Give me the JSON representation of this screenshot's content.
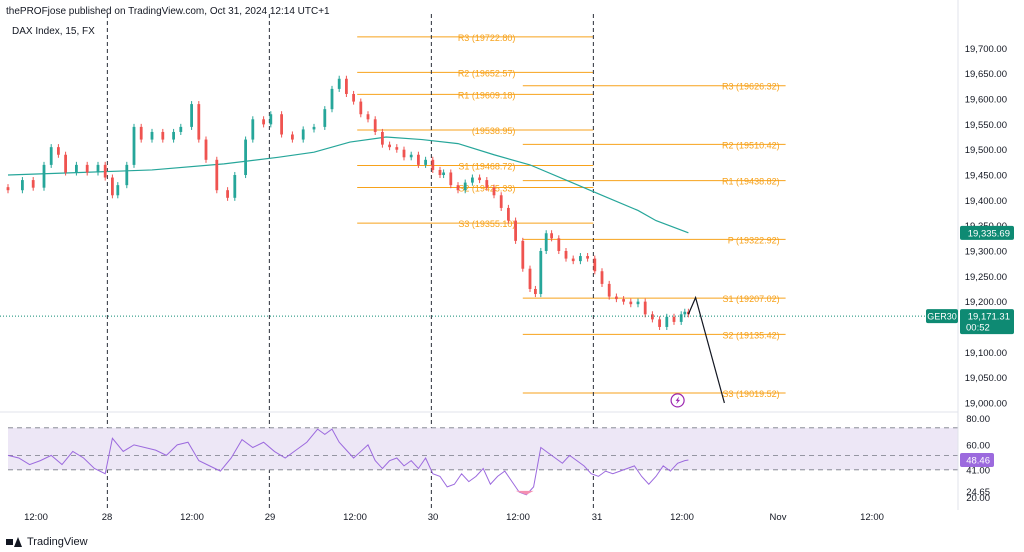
{
  "header": {
    "published": "thePROFjose published on TradingView.com, Oct 31, 2024 12:14 UTC+1",
    "symbol": "DAX Index, 15, FX"
  },
  "footer": {
    "brand": "TradingView"
  },
  "colors": {
    "up": "#26a69a",
    "down": "#ef5350",
    "pivot": "#f7a21b",
    "ma": "#26a69a",
    "rsi": "#9c6ade",
    "rsi_band": "#ede7f6",
    "price_tag": "#0e8a73",
    "ma_tag": "#0e8a73",
    "rsi_tag": "#9c6ade"
  },
  "chart_data": [
    {
      "type": "line",
      "name": "price",
      "x_labels": [
        "12:00",
        "28",
        "12:00",
        "29",
        "12:00",
        "30",
        "12:00",
        "31",
        "12:00",
        "Nov",
        "12:00"
      ],
      "y_ticks": [
        "19,700.00",
        "19,650.00",
        "19,600.00",
        "19,550.00",
        "19,500.00",
        "19,450.00",
        "19,400.00",
        "19,350.00",
        "19,300.00",
        "19,250.00",
        "19,200.00",
        "19,150.00",
        "19,100.00",
        "19,050.00",
        "19,000.00"
      ],
      "ylim": [
        18990,
        19760
      ],
      "close": [
        [
          0.0,
          19420
        ],
        [
          4,
          19440
        ],
        [
          7,
          19425
        ],
        [
          10,
          19470
        ],
        [
          12,
          19505
        ],
        [
          14,
          19490
        ],
        [
          16,
          19455
        ],
        [
          19,
          19470
        ],
        [
          22,
          19455
        ],
        [
          25,
          19470
        ],
        [
          27,
          19445
        ],
        [
          29,
          19410
        ],
        [
          30.5,
          19430
        ],
        [
          33,
          19470
        ],
        [
          35,
          19545
        ],
        [
          37,
          19520
        ],
        [
          40,
          19535
        ],
        [
          43,
          19520
        ],
        [
          46,
          19535
        ],
        [
          48,
          19545
        ],
        [
          51,
          19590
        ],
        [
          53,
          19520
        ],
        [
          55,
          19480
        ],
        [
          58,
          19420
        ],
        [
          61,
          19405
        ],
        [
          63,
          19450
        ],
        [
          66,
          19520
        ],
        [
          68,
          19560
        ],
        [
          71,
          19550
        ],
        [
          73,
          19570
        ],
        [
          76,
          19530
        ],
        [
          79,
          19520
        ],
        [
          82,
          19540
        ],
        [
          85,
          19545
        ],
        [
          88,
          19580
        ],
        [
          90,
          19620
        ],
        [
          92,
          19640
        ],
        [
          94,
          19610
        ],
        [
          96,
          19595
        ],
        [
          98,
          19570
        ],
        [
          100,
          19560
        ],
        [
          102,
          19535
        ],
        [
          104,
          19510
        ],
        [
          106,
          19505
        ],
        [
          108,
          19500
        ],
        [
          110,
          19485
        ],
        [
          112,
          19490
        ],
        [
          114,
          19470
        ],
        [
          116,
          19480
        ],
        [
          118,
          19460
        ],
        [
          120,
          19450
        ],
        [
          121,
          19455
        ],
        [
          123,
          19430
        ],
        [
          125,
          19420
        ],
        [
          127,
          19435
        ],
        [
          129,
          19445
        ],
        [
          131,
          19440
        ],
        [
          133,
          19425
        ],
        [
          135,
          19410
        ],
        [
          137,
          19385
        ],
        [
          139,
          19360
        ],
        [
          141,
          19320
        ],
        [
          143,
          19265
        ],
        [
          145,
          19225
        ],
        [
          146.5,
          19215
        ],
        [
          148,
          19300
        ],
        [
          149.5,
          19335
        ],
        [
          151,
          19325
        ],
        [
          153,
          19300
        ],
        [
          155,
          19285
        ],
        [
          157,
          19280
        ],
        [
          159,
          19290
        ],
        [
          161,
          19285
        ],
        [
          163,
          19260
        ],
        [
          165,
          19235
        ],
        [
          167,
          19210
        ],
        [
          169,
          19205
        ],
        [
          171,
          19200
        ],
        [
          173,
          19195
        ],
        [
          175,
          19200
        ],
        [
          177,
          19175
        ],
        [
          179,
          19165
        ],
        [
          181,
          19150
        ],
        [
          183,
          19170
        ],
        [
          185,
          19160
        ],
        [
          187,
          19175
        ],
        [
          188,
          19180
        ],
        [
          189,
          19175
        ]
      ],
      "moving_average": [
        [
          0,
          19450
        ],
        [
          20,
          19455
        ],
        [
          40,
          19460
        ],
        [
          60,
          19472
        ],
        [
          75,
          19485
        ],
        [
          85,
          19495
        ],
        [
          95,
          19515
        ],
        [
          105,
          19525
        ],
        [
          115,
          19520
        ],
        [
          125,
          19512
        ],
        [
          135,
          19490
        ],
        [
          145,
          19470
        ],
        [
          155,
          19440
        ],
        [
          165,
          19410
        ],
        [
          175,
          19380
        ],
        [
          180,
          19360
        ],
        [
          189,
          19336
        ]
      ],
      "last_price": "19,171.31",
      "last_price_symbol": "GER30",
      "countdown": "00:52",
      "ma_value": "19,335.69",
      "day_separators": [
        27.6,
        72.6,
        117.6,
        162.6
      ],
      "projection": [
        [
          189,
          19175
        ],
        [
          191,
          19208
        ],
        [
          199,
          19000
        ]
      ],
      "pivot_sets": [
        {
          "x_start": 97,
          "x_end": 162.6,
          "levels": [
            {
              "label": "R3 (19722.80)",
              "value": 19722.8
            },
            {
              "label": "R2 (19652.57)",
              "value": 19652.57
            },
            {
              "label": "R1 (19609.18)",
              "value": 19609.18
            },
            {
              "label": "(19538.95)",
              "value": 19538.95
            },
            {
              "label": "S1 (19468.72)",
              "value": 19468.72
            },
            {
              "label": "S2 (19425.33)",
              "value": 19425.33
            },
            {
              "label": "S3 (19355.10)",
              "value": 19355.1
            }
          ]
        },
        {
          "x_start": 143,
          "x_end": 216,
          "levels": [
            {
              "label": "R3 (19626.32)",
              "value": 19626.32
            },
            {
              "label": "R2 (19510.42)",
              "value": 19510.42
            },
            {
              "label": "R1 (19438.82)",
              "value": 19438.82
            },
            {
              "label": "P (19322.92)",
              "value": 19322.92
            },
            {
              "label": "S1 (19207.02)",
              "value": 19207.02
            },
            {
              "label": "S2 (19135.42)",
              "value": 19135.42
            },
            {
              "label": "S3 (19019.52)",
              "value": 19019.52
            }
          ]
        }
      ]
    },
    {
      "type": "line",
      "name": "RSI",
      "y_ticks": [
        "80.00",
        "60.00",
        "41.00",
        "24.65",
        "20.00"
      ],
      "ylim": [
        18,
        82
      ],
      "band": [
        41,
        73
      ],
      "value_tag": "48.46",
      "values": [
        [
          0,
          52
        ],
        [
          3,
          50
        ],
        [
          6,
          45
        ],
        [
          9,
          48
        ],
        [
          12,
          52
        ],
        [
          15,
          45
        ],
        [
          18,
          55
        ],
        [
          21,
          50
        ],
        [
          24,
          42
        ],
        [
          27,
          38
        ],
        [
          29,
          65
        ],
        [
          32,
          55
        ],
        [
          35,
          60
        ],
        [
          38,
          58
        ],
        [
          41,
          56
        ],
        [
          44,
          52
        ],
        [
          47,
          60
        ],
        [
          50,
          62
        ],
        [
          53,
          48
        ],
        [
          56,
          44
        ],
        [
          59,
          40
        ],
        [
          62,
          50
        ],
        [
          65,
          64
        ],
        [
          68,
          58
        ],
        [
          71,
          62
        ],
        [
          74,
          55
        ],
        [
          77,
          50
        ],
        [
          80,
          56
        ],
        [
          83,
          62
        ],
        [
          86,
          72
        ],
        [
          88,
          68
        ],
        [
          90,
          72
        ],
        [
          92,
          62
        ],
        [
          94,
          56
        ],
        [
          96,
          50
        ],
        [
          98,
          55
        ],
        [
          100,
          60
        ],
        [
          102,
          48
        ],
        [
          104,
          42
        ],
        [
          106,
          48
        ],
        [
          108,
          50
        ],
        [
          110,
          44
        ],
        [
          112,
          48
        ],
        [
          114,
          42
        ],
        [
          116,
          50
        ],
        [
          118,
          38
        ],
        [
          120,
          36
        ],
        [
          122,
          28
        ],
        [
          124,
          30
        ],
        [
          126,
          38
        ],
        [
          128,
          32
        ],
        [
          130,
          36
        ],
        [
          132,
          42
        ],
        [
          134,
          30
        ],
        [
          136,
          36
        ],
        [
          138,
          40
        ],
        [
          140,
          32
        ],
        [
          142,
          24
        ],
        [
          144,
          22
        ],
        [
          146,
          28
        ],
        [
          148,
          58
        ],
        [
          150,
          54
        ],
        [
          152,
          50
        ],
        [
          154,
          46
        ],
        [
          156,
          52
        ],
        [
          158,
          48
        ],
        [
          160,
          44
        ],
        [
          162,
          38
        ],
        [
          164,
          36
        ],
        [
          166,
          40
        ],
        [
          168,
          38
        ],
        [
          170,
          40
        ],
        [
          172,
          42
        ],
        [
          174,
          44
        ],
        [
          176,
          36
        ],
        [
          178,
          30
        ],
        [
          180,
          36
        ],
        [
          182,
          44
        ],
        [
          184,
          40
        ],
        [
          186,
          46
        ],
        [
          188,
          48
        ],
        [
          189,
          48.5
        ]
      ]
    }
  ]
}
